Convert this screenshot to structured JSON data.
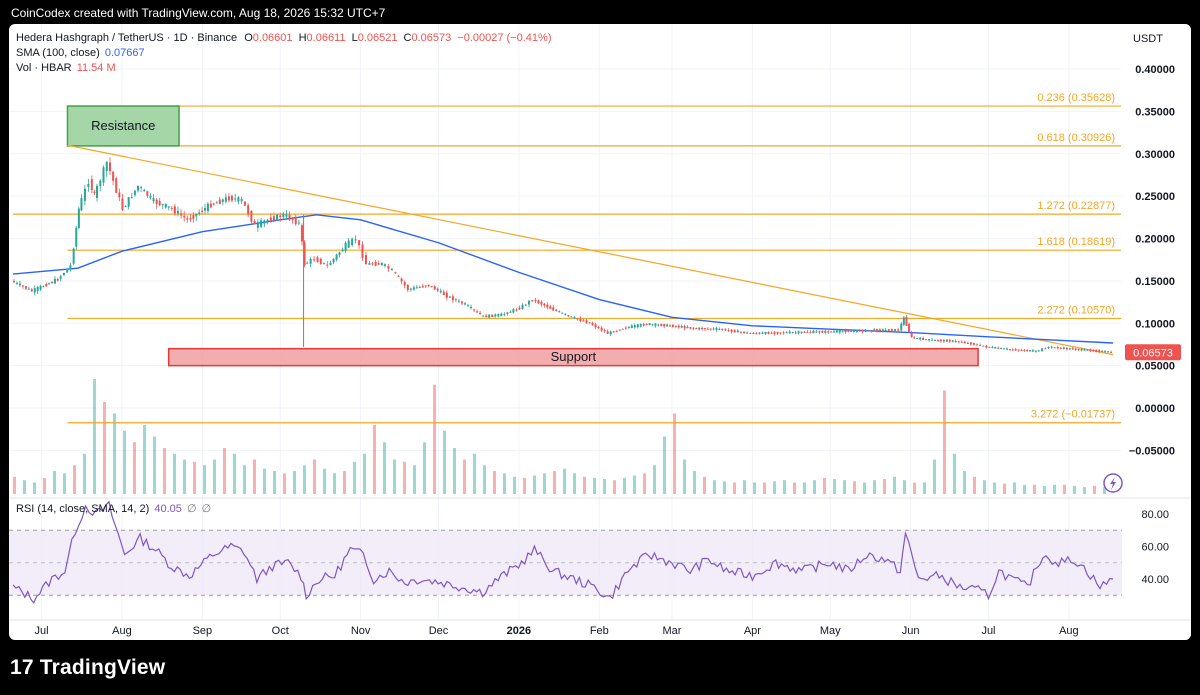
{
  "header": {
    "attribution": "CoinCodex created with TradingView.com, Aug 18, 2026 15:32 UTC+7"
  },
  "legend": {
    "symbol": "Hedera Hashgraph / TetherUS · 1D · Binance",
    "open_label": "O",
    "open": "0.06601",
    "high_label": "H",
    "high": "0.06611",
    "low_label": "L",
    "low": "0.06521",
    "close_label": "C",
    "close": "0.06573",
    "change": "−0.00027 (−0.41%)",
    "sma_label": "SMA (100, close)",
    "sma_value": "0.07667",
    "vol_label": "Vol · HBAR",
    "vol_value": "11.54 M",
    "rsi_label": "RSI (14, close, SMA, 14, 2)",
    "rsi_value": "40.05",
    "rsi_na1": "∅",
    "rsi_na2": "∅"
  },
  "colors": {
    "up": "#26a69a",
    "down": "#ef5350",
    "sma": "#2962ff",
    "fib": "#f5a623",
    "rsi": "#7e57c2",
    "resistance": "#a5d6a7",
    "support": "#ef9a9a"
  },
  "chart_data": [
    {
      "type": "candlestick",
      "title": "Hedera Hashgraph / TetherUS · 1D · Binance",
      "y_unit": "USDT",
      "ylim": [
        -0.1,
        0.42
      ],
      "y_ticks": [
        "0.40000",
        "0.35000",
        "0.30000",
        "0.25000",
        "0.20000",
        "0.15000",
        "0.10000",
        "0.05000",
        "0.00000",
        "−0.05000"
      ],
      "x_ticks": [
        "Jul",
        "Aug",
        "Sep",
        "Oct",
        "Nov",
        "Dec",
        "2026",
        "Feb",
        "Mar",
        "Apr",
        "May",
        "Jun",
        "Jul",
        "Aug"
      ],
      "x_tick_dates": [
        "2025-07-01",
        "2025-08-01",
        "2025-09-01",
        "2025-10-01",
        "2025-11-01",
        "2025-12-01",
        "2026-01-01",
        "2026-02-01",
        "2026-03-01",
        "2026-04-01",
        "2026-05-01",
        "2026-06-01",
        "2026-07-01",
        "2026-08-01"
      ],
      "price_path": [
        [
          "2025-06-20",
          0.15
        ],
        [
          "2025-06-28",
          0.138
        ],
        [
          "2025-07-08",
          0.152
        ],
        [
          "2025-07-13",
          0.168
        ],
        [
          "2025-07-16",
          0.235
        ],
        [
          "2025-07-20",
          0.268
        ],
        [
          "2025-07-22",
          0.25
        ],
        [
          "2025-07-27",
          0.29
        ],
        [
          "2025-08-02",
          0.235
        ],
        [
          "2025-08-08",
          0.262
        ],
        [
          "2025-08-14",
          0.244
        ],
        [
          "2025-08-21",
          0.235
        ],
        [
          "2025-08-27",
          0.222
        ],
        [
          "2025-09-05",
          0.24
        ],
        [
          "2025-09-12",
          0.248
        ],
        [
          "2025-09-17",
          0.245
        ],
        [
          "2025-09-22",
          0.215
        ],
        [
          "2025-09-27",
          0.222
        ],
        [
          "2025-10-03",
          0.228
        ],
        [
          "2025-10-09",
          0.218
        ],
        [
          "2025-10-11",
          0.17
        ],
        [
          "2025-10-15",
          0.176
        ],
        [
          "2025-10-20",
          0.168
        ],
        [
          "2025-10-27",
          0.192
        ],
        [
          "2025-10-31",
          0.2
        ],
        [
          "2025-11-04",
          0.17
        ],
        [
          "2025-11-10",
          0.17
        ],
        [
          "2025-11-14",
          0.162
        ],
        [
          "2025-11-20",
          0.14
        ],
        [
          "2025-11-28",
          0.145
        ],
        [
          "2025-12-05",
          0.132
        ],
        [
          "2025-12-12",
          0.122
        ],
        [
          "2025-12-19",
          0.108
        ],
        [
          "2025-12-26",
          0.11
        ],
        [
          "2026-01-02",
          0.118
        ],
        [
          "2026-01-07",
          0.128
        ],
        [
          "2026-01-15",
          0.116
        ],
        [
          "2026-01-22",
          0.107
        ],
        [
          "2026-01-29",
          0.1
        ],
        [
          "2026-02-05",
          0.088
        ],
        [
          "2026-02-12",
          0.095
        ],
        [
          "2026-02-20",
          0.099
        ],
        [
          "2026-03-01",
          0.097
        ],
        [
          "2026-03-10",
          0.094
        ],
        [
          "2026-03-20",
          0.093
        ],
        [
          "2026-04-01",
          0.088
        ],
        [
          "2026-04-15",
          0.089
        ],
        [
          "2026-05-01",
          0.09
        ],
        [
          "2026-05-12",
          0.091
        ],
        [
          "2026-05-22",
          0.092
        ],
        [
          "2026-05-28",
          0.092
        ],
        [
          "2026-05-30",
          0.106
        ],
        [
          "2026-06-02",
          0.083
        ],
        [
          "2026-06-10",
          0.08
        ],
        [
          "2026-06-18",
          0.079
        ],
        [
          "2026-06-25",
          0.076
        ],
        [
          "2026-07-01",
          0.072
        ],
        [
          "2026-07-10",
          0.069
        ],
        [
          "2026-07-20",
          0.067
        ],
        [
          "2026-07-25",
          0.072
        ],
        [
          "2026-08-01",
          0.07
        ],
        [
          "2026-08-10",
          0.068
        ],
        [
          "2026-08-18",
          0.0657
        ]
      ],
      "sma_path": [
        [
          "2025-06-20",
          0.158
        ],
        [
          "2025-07-15",
          0.165
        ],
        [
          "2025-08-01",
          0.185
        ],
        [
          "2025-09-01",
          0.208
        ],
        [
          "2025-10-01",
          0.222
        ],
        [
          "2025-10-15",
          0.228
        ],
        [
          "2025-11-01",
          0.222
        ],
        [
          "2025-12-01",
          0.195
        ],
        [
          "2026-01-01",
          0.16
        ],
        [
          "2026-02-01",
          0.128
        ],
        [
          "2026-03-01",
          0.107
        ],
        [
          "2026-04-01",
          0.097
        ],
        [
          "2026-05-01",
          0.093
        ],
        [
          "2026-06-01",
          0.089
        ],
        [
          "2026-07-01",
          0.084
        ],
        [
          "2026-08-18",
          0.0767
        ]
      ],
      "volume_bars_relative": [
        0.15,
        0.12,
        0.1,
        0.14,
        0.2,
        0.18,
        0.25,
        0.35,
        1.0,
        0.8,
        0.7,
        0.55,
        0.45,
        0.6,
        0.5,
        0.4,
        0.35,
        0.3,
        0.28,
        0.25,
        0.3,
        0.4,
        0.35,
        0.25,
        0.3,
        0.22,
        0.2,
        0.18,
        0.2,
        0.25,
        0.3,
        0.22,
        0.18,
        0.2,
        0.28,
        0.35,
        0.6,
        0.45,
        0.3,
        0.28,
        0.25,
        0.45,
        0.95,
        0.55,
        0.4,
        0.3,
        0.35,
        0.25,
        0.2,
        0.18,
        0.15,
        0.14,
        0.16,
        0.18,
        0.2,
        0.22,
        0.18,
        0.15,
        0.14,
        0.13,
        0.12,
        0.14,
        0.16,
        0.18,
        0.25,
        0.5,
        0.7,
        0.3,
        0.2,
        0.15,
        0.12,
        0.11,
        0.1,
        0.12,
        0.1,
        0.1,
        0.11,
        0.12,
        0.1,
        0.1,
        0.12,
        0.14,
        0.13,
        0.12,
        0.11,
        0.1,
        0.12,
        0.13,
        0.15,
        0.12,
        0.1,
        0.1,
        0.3,
        0.9,
        0.35,
        0.2,
        0.15,
        0.12,
        0.1,
        0.09,
        0.1,
        0.08,
        0.08,
        0.07,
        0.08,
        0.08,
        0.07,
        0.06,
        0.07,
        0.06
      ],
      "resistance_zone": {
        "label": "Resistance",
        "y_range": [
          0.30926,
          0.35628
        ],
        "x_range": [
          "2025-07-11",
          "2025-08-23"
        ]
      },
      "support_zone": {
        "label": "Support",
        "y_range": [
          0.05,
          0.07
        ],
        "x_range": [
          "2025-08-19",
          "2026-06-27"
        ]
      },
      "trendline": [
        [
          "2025-07-11",
          0.31
        ],
        [
          "2026-08-18",
          0.063
        ]
      ],
      "fib_levels": [
        {
          "ratio": "0.236",
          "label": "0.236 (0.35628)",
          "value": 0.35628,
          "x_start": "2025-07-11"
        },
        {
          "ratio": "0.618",
          "label": "0.618 (0.30926)",
          "value": 0.30926,
          "x_start": "2025-07-11"
        },
        {
          "ratio": "1.272",
          "label": "1.272 (0.22877)",
          "value": 0.22877,
          "x_start": "2025-06-20"
        },
        {
          "ratio": "1.618",
          "label": "1.618 (0.18619)",
          "value": 0.18619,
          "x_start": "2025-07-11"
        },
        {
          "ratio": "2.272",
          "label": "2.272 (0.10570)",
          "value": 0.1057,
          "x_start": "2025-07-11"
        },
        {
          "ratio": "3.272",
          "label": "3.272 (−0.01737)",
          "value": -0.01737,
          "x_start": "2025-07-11"
        }
      ],
      "last_price_label": "0.06573",
      "last_price": 0.06573
    },
    {
      "type": "line",
      "title": "RSI (14, close, SMA, 14, 2)",
      "ylim": [
        20,
        90
      ],
      "y_ticks": [
        "80.00",
        "60.00",
        "40.00"
      ],
      "y_tick_values": [
        80,
        60,
        40
      ],
      "band": [
        30,
        70
      ],
      "midline": 50,
      "rsi_path": [
        [
          "2025-06-20",
          35
        ],
        [
          "2025-06-28",
          28
        ],
        [
          "2025-07-05",
          40
        ],
        [
          "2025-07-10",
          45
        ],
        [
          "2025-07-14",
          70
        ],
        [
          "2025-07-18",
          85
        ],
        [
          "2025-07-22",
          80
        ],
        [
          "2025-07-27",
          85
        ],
        [
          "2025-08-02",
          55
        ],
        [
          "2025-08-08",
          65
        ],
        [
          "2025-08-14",
          58
        ],
        [
          "2025-08-20",
          48
        ],
        [
          "2025-08-27",
          42
        ],
        [
          "2025-09-05",
          55
        ],
        [
          "2025-09-12",
          60
        ],
        [
          "2025-09-17",
          57
        ],
        [
          "2025-09-22",
          40
        ],
        [
          "2025-09-28",
          48
        ],
        [
          "2025-10-04",
          50
        ],
        [
          "2025-10-09",
          42
        ],
        [
          "2025-10-11",
          30
        ],
        [
          "2025-10-16",
          40
        ],
        [
          "2025-10-22",
          42
        ],
        [
          "2025-10-28",
          58
        ],
        [
          "2025-11-02",
          55
        ],
        [
          "2025-11-06",
          40
        ],
        [
          "2025-11-12",
          45
        ],
        [
          "2025-11-18",
          38
        ],
        [
          "2025-11-24",
          40
        ],
        [
          "2025-12-02",
          38
        ],
        [
          "2025-12-10",
          35
        ],
        [
          "2025-12-18",
          32
        ],
        [
          "2025-12-24",
          40
        ],
        [
          "2026-01-02",
          50
        ],
        [
          "2026-01-07",
          58
        ],
        [
          "2026-01-14",
          45
        ],
        [
          "2026-01-22",
          40
        ],
        [
          "2026-01-30",
          35
        ],
        [
          "2026-02-05",
          28
        ],
        [
          "2026-02-12",
          45
        ],
        [
          "2026-02-20",
          55
        ],
        [
          "2026-03-01",
          50
        ],
        [
          "2026-03-08",
          45
        ],
        [
          "2026-03-15",
          52
        ],
        [
          "2026-03-22",
          45
        ],
        [
          "2026-04-01",
          42
        ],
        [
          "2026-04-10",
          50
        ],
        [
          "2026-04-20",
          45
        ],
        [
          "2026-05-01",
          50
        ],
        [
          "2026-05-08",
          45
        ],
        [
          "2026-05-15",
          55
        ],
        [
          "2026-05-22",
          52
        ],
        [
          "2026-05-28",
          45
        ],
        [
          "2026-05-30",
          68
        ],
        [
          "2026-06-04",
          40
        ],
        [
          "2026-06-12",
          42
        ],
        [
          "2026-06-20",
          35
        ],
        [
          "2026-06-27",
          33
        ],
        [
          "2026-07-01",
          30
        ],
        [
          "2026-07-05",
          45
        ],
        [
          "2026-07-10",
          40
        ],
        [
          "2026-07-16",
          35
        ],
        [
          "2026-07-22",
          55
        ],
        [
          "2026-07-28",
          50
        ],
        [
          "2026-08-03",
          52
        ],
        [
          "2026-08-08",
          45
        ],
        [
          "2026-08-13",
          35
        ],
        [
          "2026-08-18",
          40
        ]
      ]
    }
  ],
  "footer": {
    "logo_text": "TradingView",
    "logo_mark": "17"
  }
}
